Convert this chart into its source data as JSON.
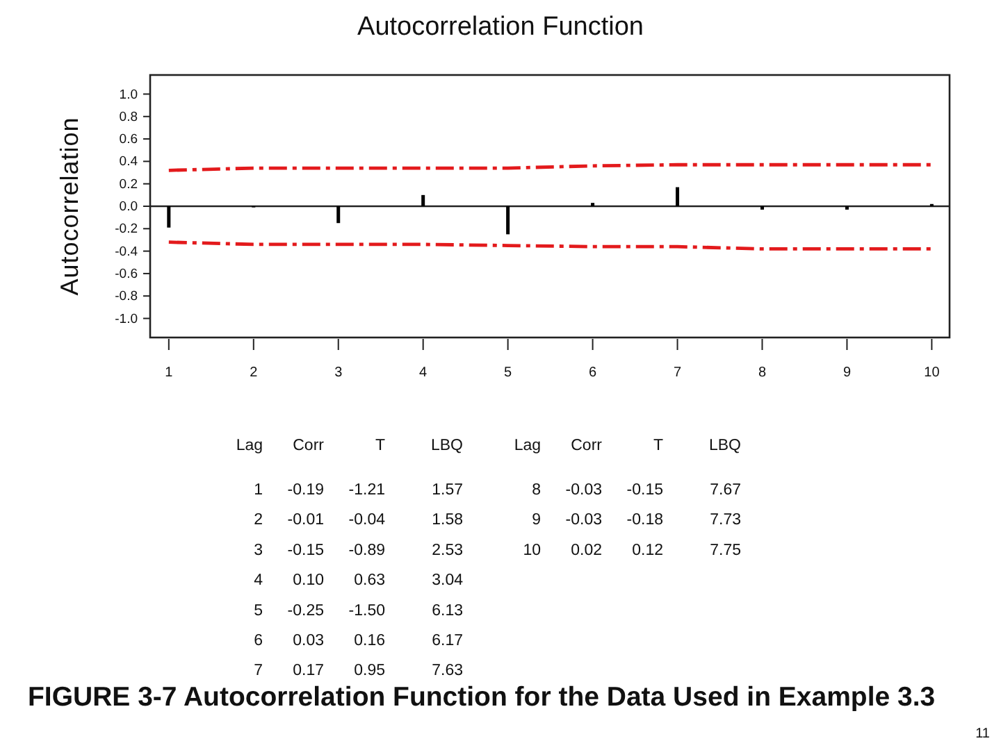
{
  "chart_data": {
    "type": "bar",
    "title": "Autocorrelation Function",
    "ylabel": "Autocorrelation",
    "x": [
      1,
      2,
      3,
      4,
      5,
      6,
      7,
      8,
      9,
      10
    ],
    "xlim": [
      0.78,
      10.21
    ],
    "xticks": [
      1,
      2,
      3,
      4,
      5,
      6,
      7,
      8,
      9,
      10
    ],
    "ylim": [
      -1.17,
      1.17
    ],
    "yticks": [
      {
        "value": -1,
        "label": "-1.0"
      },
      {
        "value": -0.8,
        "label": "-0.8"
      },
      {
        "value": -0.6,
        "label": "-0.6"
      },
      {
        "value": -0.4,
        "label": "-0.4"
      },
      {
        "value": -0.2,
        "label": "-0.2"
      },
      {
        "value": 0,
        "label": "0.0"
      },
      {
        "value": 0.2,
        "label": "0.2"
      },
      {
        "value": 0.4,
        "label": "0.4"
      },
      {
        "value": 0.6,
        "label": "0.6"
      },
      {
        "value": 0.8,
        "label": "0.8"
      },
      {
        "value": 1,
        "label": "1.0"
      }
    ],
    "line_style": "dashed",
    "series": [
      {
        "color": "#000000",
        "values": [
          -0.19,
          -0.01,
          -0.15,
          0.1,
          -0.25,
          0.03,
          0.17,
          -0.03,
          -0.03,
          0.02
        ]
      },
      {
        "type": "line",
        "color": "#e31a1c",
        "values": [
          0.32,
          0.34,
          0.34,
          0.34,
          0.34,
          0.36,
          0.37,
          0.37,
          0.37,
          0.37
        ]
      },
      {
        "type": "line",
        "color": "#e31a1c",
        "values": [
          -0.32,
          -0.34,
          -0.34,
          -0.34,
          -0.35,
          -0.36,
          -0.36,
          -0.38,
          -0.38,
          -0.38
        ]
      }
    ],
    "annotations": [
      "FIGURE 3-7 Autocorrelation Function for the Data Used in Example 3.3",
      "11",
      "Lag",
      "Corr",
      "T",
      "LBQ",
      "Lag",
      "Corr",
      "T",
      "LBQ",
      "1",
      "-0.19",
      "-1.21",
      "1.57",
      "2",
      "-0.01",
      "-0.04",
      "1.58",
      "3",
      "-0.15",
      "-0.89",
      "2.53",
      "4",
      "0.10",
      "0.63",
      "3.04",
      "5",
      "-0.25",
      "-1.50",
      "6.13",
      "6",
      "0.03",
      "0.16",
      "6.17",
      "7",
      "0.17",
      "0.95",
      "7.63",
      "8",
      "-0.03",
      "-0.15",
      "7.67",
      "9",
      "-0.03",
      "-0.18",
      "7.73",
      "10",
      "0.02",
      "0.12",
      "7.75"
    ]
  }
}
